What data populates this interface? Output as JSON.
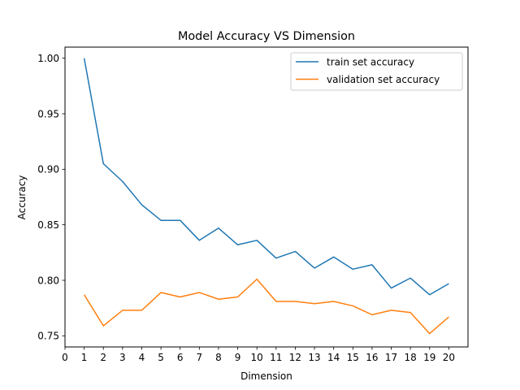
{
  "chart_data": {
    "type": "line",
    "title": "Model Accuracy VS Dimension",
    "xlabel": "Dimension",
    "ylabel": "Accuracy",
    "xlim": [
      0,
      21
    ],
    "ylim": [
      0.74,
      1.01
    ],
    "xticks": [
      "0",
      "1",
      "2",
      "3",
      "4",
      "5",
      "6",
      "7",
      "8",
      "9",
      "10",
      "11",
      "12",
      "13",
      "14",
      "15",
      "16",
      "17",
      "18",
      "19",
      "20"
    ],
    "yticks": [
      "0.75",
      "0.80",
      "0.85",
      "0.90",
      "0.95",
      "1.00"
    ],
    "grid": false,
    "legend_position": "top-right",
    "x": [
      1,
      2,
      3,
      4,
      5,
      6,
      7,
      8,
      9,
      10,
      11,
      12,
      13,
      14,
      15,
      16,
      17,
      18,
      19,
      20
    ],
    "series": [
      {
        "name": "train set accuracy",
        "color": "#1f77b4",
        "values": [
          1.0,
          0.905,
          0.889,
          0.868,
          0.854,
          0.854,
          0.836,
          0.847,
          0.832,
          0.836,
          0.82,
          0.826,
          0.811,
          0.821,
          0.81,
          0.814,
          0.793,
          0.802,
          0.787,
          0.797
        ]
      },
      {
        "name": "validation set accuracy",
        "color": "#ff7f0e",
        "values": [
          0.787,
          0.759,
          0.773,
          0.773,
          0.789,
          0.785,
          0.789,
          0.783,
          0.785,
          0.801,
          0.781,
          0.781,
          0.779,
          0.781,
          0.777,
          0.769,
          0.773,
          0.771,
          0.752,
          0.767
        ]
      }
    ]
  }
}
